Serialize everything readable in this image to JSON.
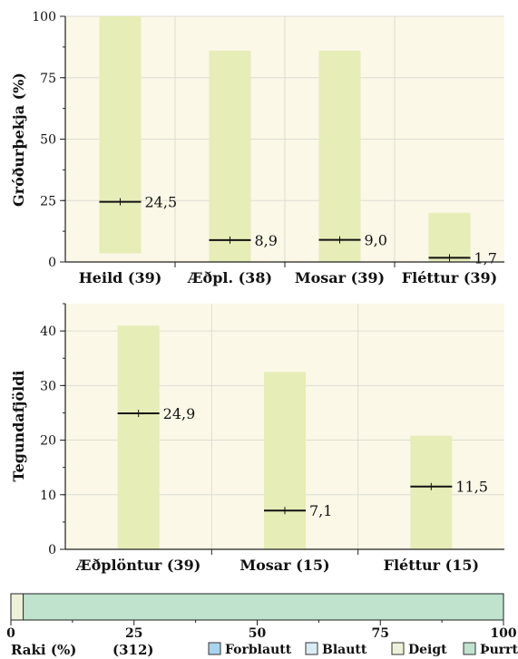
{
  "colors": {
    "panel_bg": "#fbf8e8",
    "bar_fill": "#e6edb7",
    "grid": "#dcdcd2",
    "axis": "#222222",
    "median_line": "#111111",
    "moisture": {
      "Forblautt": "#a9d4ee",
      "Blautt": "#d9ecf6",
      "Deigt": "#eef1d7",
      "Þurrt": "#bfe3cd"
    }
  },
  "chart_data": [
    {
      "type": "bar",
      "ylabel": "Gróðurþekja (%)",
      "ylim": [
        0,
        100
      ],
      "yticks": [
        "0",
        "25",
        "50",
        "75",
        "100"
      ],
      "grid": true,
      "categories": [
        "Heild (39)",
        "Æðpl. (38)",
        "Mosar (39)",
        "Fléttur (39)"
      ],
      "ranges": [
        {
          "min": 3.5,
          "max": 100,
          "median": 24.5,
          "label": "24,5"
        },
        {
          "min": 0,
          "max": 86,
          "median": 8.9,
          "label": "8,9"
        },
        {
          "min": 0,
          "max": 86,
          "median": 9.0,
          "label": "9,0"
        },
        {
          "min": 0,
          "max": 20,
          "median": 1.7,
          "label": "1,7"
        }
      ]
    },
    {
      "type": "bar",
      "ylabel": "Tegundafjöldi",
      "ylim": [
        0,
        45
      ],
      "yticks": [
        "0",
        "10",
        "20",
        "30",
        "40"
      ],
      "grid": true,
      "categories": [
        "Æðplöntur (39)",
        "Mosar (15)",
        "Fléttur (15)"
      ],
      "ranges": [
        {
          "min": 0,
          "max": 41,
          "median": 24.9,
          "label": "24,9"
        },
        {
          "min": 0,
          "max": 32.5,
          "median": 7.1,
          "label": "7,1"
        },
        {
          "min": 0,
          "max": 20.8,
          "median": 11.5,
          "label": "11,5"
        }
      ]
    },
    {
      "type": "bar",
      "xlabel": "Raki (%)",
      "count_label": "(312)",
      "xlim": [
        0,
        100
      ],
      "xticks": [
        "0",
        "25",
        "50",
        "75",
        "100"
      ],
      "series": [
        {
          "name": "Forblautt",
          "value": 0
        },
        {
          "name": "Blautt",
          "value": 0
        },
        {
          "name": "Deigt",
          "value": 2.5
        },
        {
          "name": "Þurrt",
          "value": 97.5
        }
      ],
      "legend": [
        "Forblautt",
        "Blautt",
        "Deigt",
        "Þurrt"
      ]
    }
  ]
}
